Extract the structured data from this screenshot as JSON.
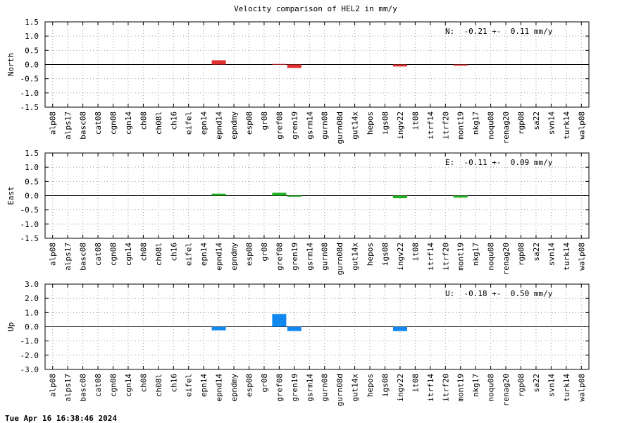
{
  "title": "Velocity comparison of HEL2 in mm/y",
  "footer": "Tue Apr 16 16:38:46 2024",
  "chart_data": {
    "type": "bar",
    "categories": [
      "alp08",
      "alps17",
      "basc08",
      "cat08",
      "cgn08",
      "cgn14",
      "ch08",
      "ch08l",
      "ch16",
      "eifel",
      "epn14",
      "epnd14",
      "epndmy",
      "esp08",
      "gr08",
      "gref08",
      "gren19",
      "gsrm14",
      "gurn08",
      "gurn08d",
      "gut14x",
      "hepos",
      "igs08",
      "ingv22",
      "it08",
      "itrf14",
      "itrf20",
      "mont19",
      "nkg17",
      "noqu08",
      "renag20",
      "rgp08",
      "sa22",
      "svn14",
      "turk14",
      "walp08"
    ],
    "panels": [
      {
        "name": "North",
        "ylabel": "North",
        "color": "#e03030",
        "ylim": [
          -1.5,
          1.5
        ],
        "yticks": [
          "1.5",
          "1.0",
          "0.5",
          "0.0",
          "-0.5",
          "-1.0",
          "-1.5"
        ],
        "summary": "N:  -0.21 +-  0.11 mm/y",
        "values": {
          "epnd14": 0.15,
          "gref08": 0.02,
          "gren19": -0.12,
          "ingv22": -0.07,
          "mont19": -0.04
        }
      },
      {
        "name": "East",
        "ylabel": "East",
        "color": "#20b020",
        "ylim": [
          -1.5,
          1.5
        ],
        "yticks": [
          "1.5",
          "1.0",
          "0.5",
          "0.0",
          "-0.5",
          "-1.0",
          "-1.5"
        ],
        "summary": "E:  -0.11 +-  0.09 mm/y",
        "values": {
          "epnd14": 0.07,
          "gref08": 0.1,
          "gren19": -0.04,
          "ingv22": -0.09,
          "mont19": -0.07
        }
      },
      {
        "name": "Up",
        "ylabel": "Up",
        "color": "#1088f0",
        "ylim": [
          -3.0,
          3.0
        ],
        "yticks": [
          "3.0",
          "2.0",
          "1.0",
          "0.0",
          "-1.0",
          "-2.0",
          "-3.0"
        ],
        "summary": "U:  -0.18 +-  0.50 mm/y",
        "values": {
          "epnd14": -0.25,
          "gref08": 0.9,
          "gren19": -0.3,
          "ingv22": -0.3
        }
      }
    ]
  }
}
